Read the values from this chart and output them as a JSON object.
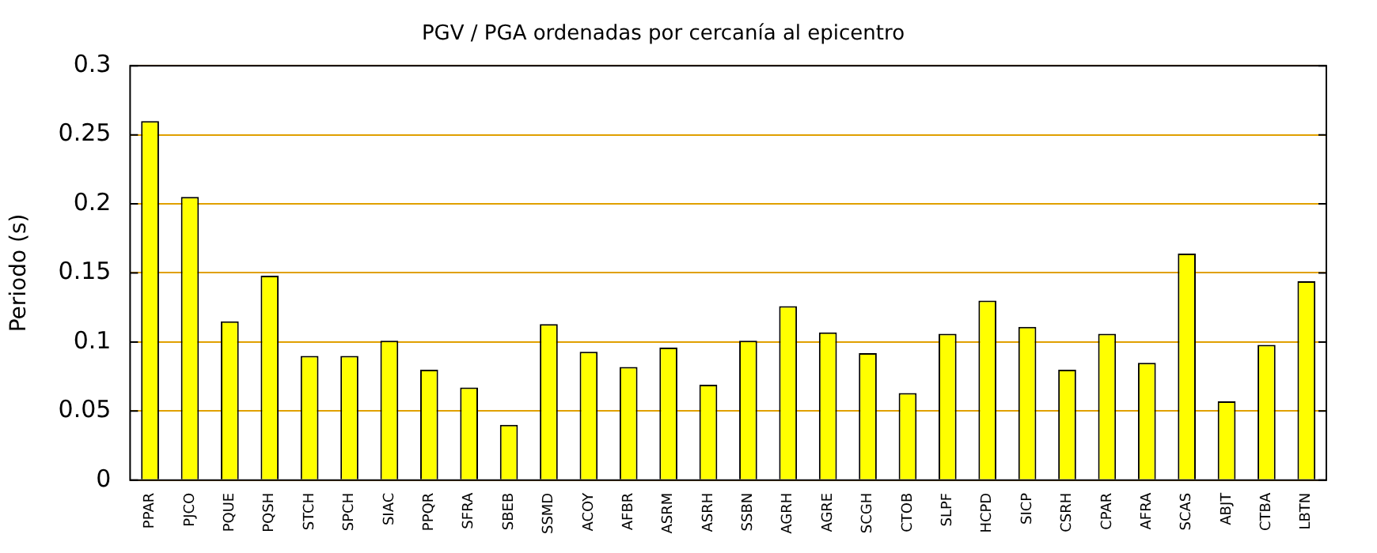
{
  "chart_data": {
    "type": "bar",
    "title": "PGV / PGA ordenadas por cercanía al epicentro",
    "ylabel": "Periodo (s)",
    "categories": [
      "PPAR",
      "PJCO",
      "PQUE",
      "PQSH",
      "STCH",
      "SPCH",
      "SIAC",
      "PPQR",
      "SFRA",
      "SBEB",
      "SSMD",
      "ACOY",
      "AFBR",
      "ASRM",
      "ASRH",
      "SSBN",
      "AGRH",
      "AGRE",
      "SCGH",
      "CTOB",
      "SLPF",
      "HCPD",
      "SICP",
      "CSRH",
      "CPAR",
      "AFRA",
      "SCAS",
      "ABJT",
      "CTBA",
      "LBTN"
    ],
    "values": [
      0.26,
      0.205,
      0.115,
      0.148,
      0.09,
      0.09,
      0.101,
      0.08,
      0.067,
      0.04,
      0.113,
      0.093,
      0.082,
      0.096,
      0.069,
      0.101,
      0.126,
      0.107,
      0.092,
      0.063,
      0.106,
      0.13,
      0.111,
      0.08,
      0.106,
      0.085,
      0.164,
      0.057,
      0.098,
      0.144
    ],
    "color": "#ffff00",
    "ylim": [
      0,
      0.3
    ],
    "yticks": [
      0,
      0.05,
      0.1,
      0.15,
      0.2,
      0.25,
      0.3
    ],
    "grid": "y",
    "legend": false
  }
}
